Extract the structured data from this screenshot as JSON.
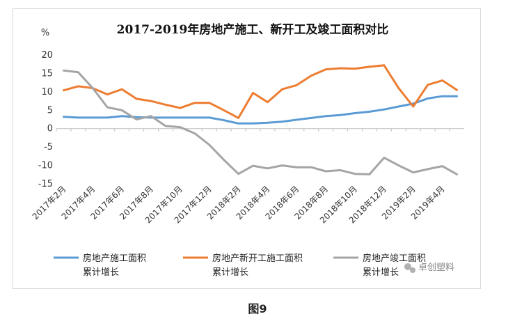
{
  "caption": "图9",
  "watermark": {
    "text": "卓创塑料",
    "icon": "wechat-icon"
  },
  "chart_data": {
    "type": "line",
    "title": "2017-2019年房地产施工、新开工及竣工面积对比",
    "ylabel": "%",
    "xlabel": "",
    "ylim": [
      -15,
      20
    ],
    "yticks": [
      20,
      15,
      10,
      5,
      0,
      -5,
      -10,
      -15
    ],
    "grid": false,
    "legend_position": "bottom",
    "x": [
      "2017年2月",
      "2017年3月",
      "2017年4月",
      "2017年5月",
      "2017年6月",
      "2017年7月",
      "2017年8月",
      "2017年9月",
      "2017年10月",
      "2017年11月",
      "2017年12月",
      "2018年1月",
      "2018年2月",
      "2018年3月",
      "2018年4月",
      "2018年5月",
      "2018年6月",
      "2018年7月",
      "2018年8月",
      "2018年9月",
      "2018年10月",
      "2018年11月",
      "2018年12月",
      "2019年1月",
      "2019年2月",
      "2019年3月",
      "2019年4月",
      "2019年5月"
    ],
    "x_tick_labels": [
      "2017年2月",
      "2017年4月",
      "2017年6月",
      "2017年8月",
      "2017年10月",
      "2017年12月",
      "2018年2月",
      "2018年4月",
      "2018年6月",
      "2018年8月",
      "2018年10月",
      "2018年12月",
      "2019年2月",
      "2019年4月"
    ],
    "series": [
      {
        "name": "房地产施工面积累计增长",
        "legend_lines": [
          "房地产施工面积",
          "累计增长"
        ],
        "color": "#5b9bd5",
        "values": [
          3.2,
          3.0,
          3.0,
          3.0,
          3.4,
          3.1,
          3.0,
          3.0,
          3.0,
          3.0,
          3.0,
          2.3,
          1.4,
          1.4,
          1.6,
          1.9,
          2.4,
          2.9,
          3.4,
          3.7,
          4.2,
          4.6,
          5.2,
          6.0,
          6.8,
          8.2,
          8.8,
          8.8
        ]
      },
      {
        "name": "房地产新开工施工面积累计增长",
        "legend_lines": [
          "房地产新开工施工面积",
          "累计增长"
        ],
        "color": "#ed7d31",
        "values": [
          10.4,
          11.5,
          11.0,
          9.3,
          10.7,
          8.1,
          7.5,
          6.5,
          5.6,
          7.0,
          7.0,
          5.0,
          2.9,
          9.7,
          7.2,
          10.7,
          11.8,
          14.4,
          16.1,
          16.4,
          16.3,
          16.8,
          17.2,
          11.0,
          6.0,
          11.9,
          13.1,
          10.5
        ]
      },
      {
        "name": "房地产竣工面积累计增长",
        "legend_lines": [
          "房地产竣工面积",
          "累计增长"
        ],
        "color": "#a5a5a5",
        "values": [
          15.8,
          15.3,
          11.0,
          5.8,
          5.0,
          2.5,
          3.4,
          0.7,
          0.4,
          -1.3,
          -4.4,
          -8.5,
          -12.3,
          -10.1,
          -10.8,
          -10.0,
          -10.5,
          -10.5,
          -11.6,
          -11.3,
          -12.3,
          -12.4,
          -7.9,
          -10.0,
          -11.9,
          -11.0,
          -10.2,
          -12.4
        ]
      }
    ]
  }
}
